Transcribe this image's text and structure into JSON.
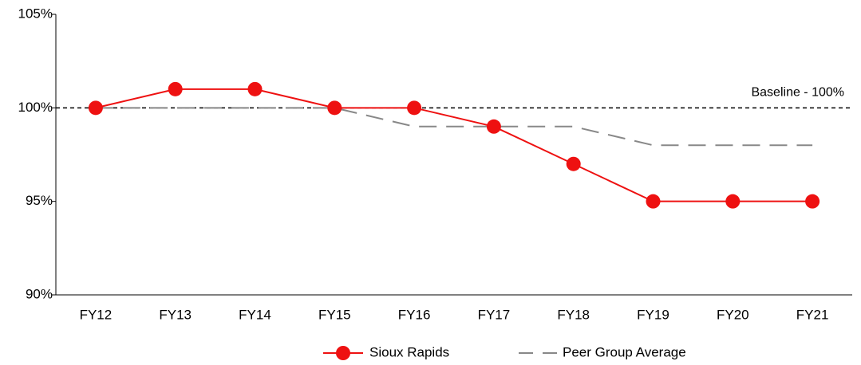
{
  "chart_data": {
    "type": "line",
    "categories": [
      "FY12",
      "FY13",
      "FY14",
      "FY15",
      "FY16",
      "FY17",
      "FY18",
      "FY19",
      "FY20",
      "FY21"
    ],
    "series": [
      {
        "name": "Sioux Rapids",
        "color": "#ee1111",
        "values": [
          100,
          101,
          101,
          100,
          100,
          99,
          97,
          95,
          95,
          95
        ]
      },
      {
        "name": "Peer Group Average",
        "color": "#888888",
        "values": [
          100,
          100,
          100,
          100,
          99,
          99,
          99,
          98,
          98,
          98
        ]
      }
    ],
    "ylim": [
      90,
      105
    ],
    "yticks": [
      {
        "value": 90,
        "label": "90%"
      },
      {
        "value": 95,
        "label": "95%"
      },
      {
        "value": 100,
        "label": "100%"
      },
      {
        "value": 105,
        "label": "105%"
      }
    ],
    "baseline": {
      "value": 100,
      "label": "Baseline - 100%"
    },
    "grid": false,
    "legend": "bottom"
  }
}
